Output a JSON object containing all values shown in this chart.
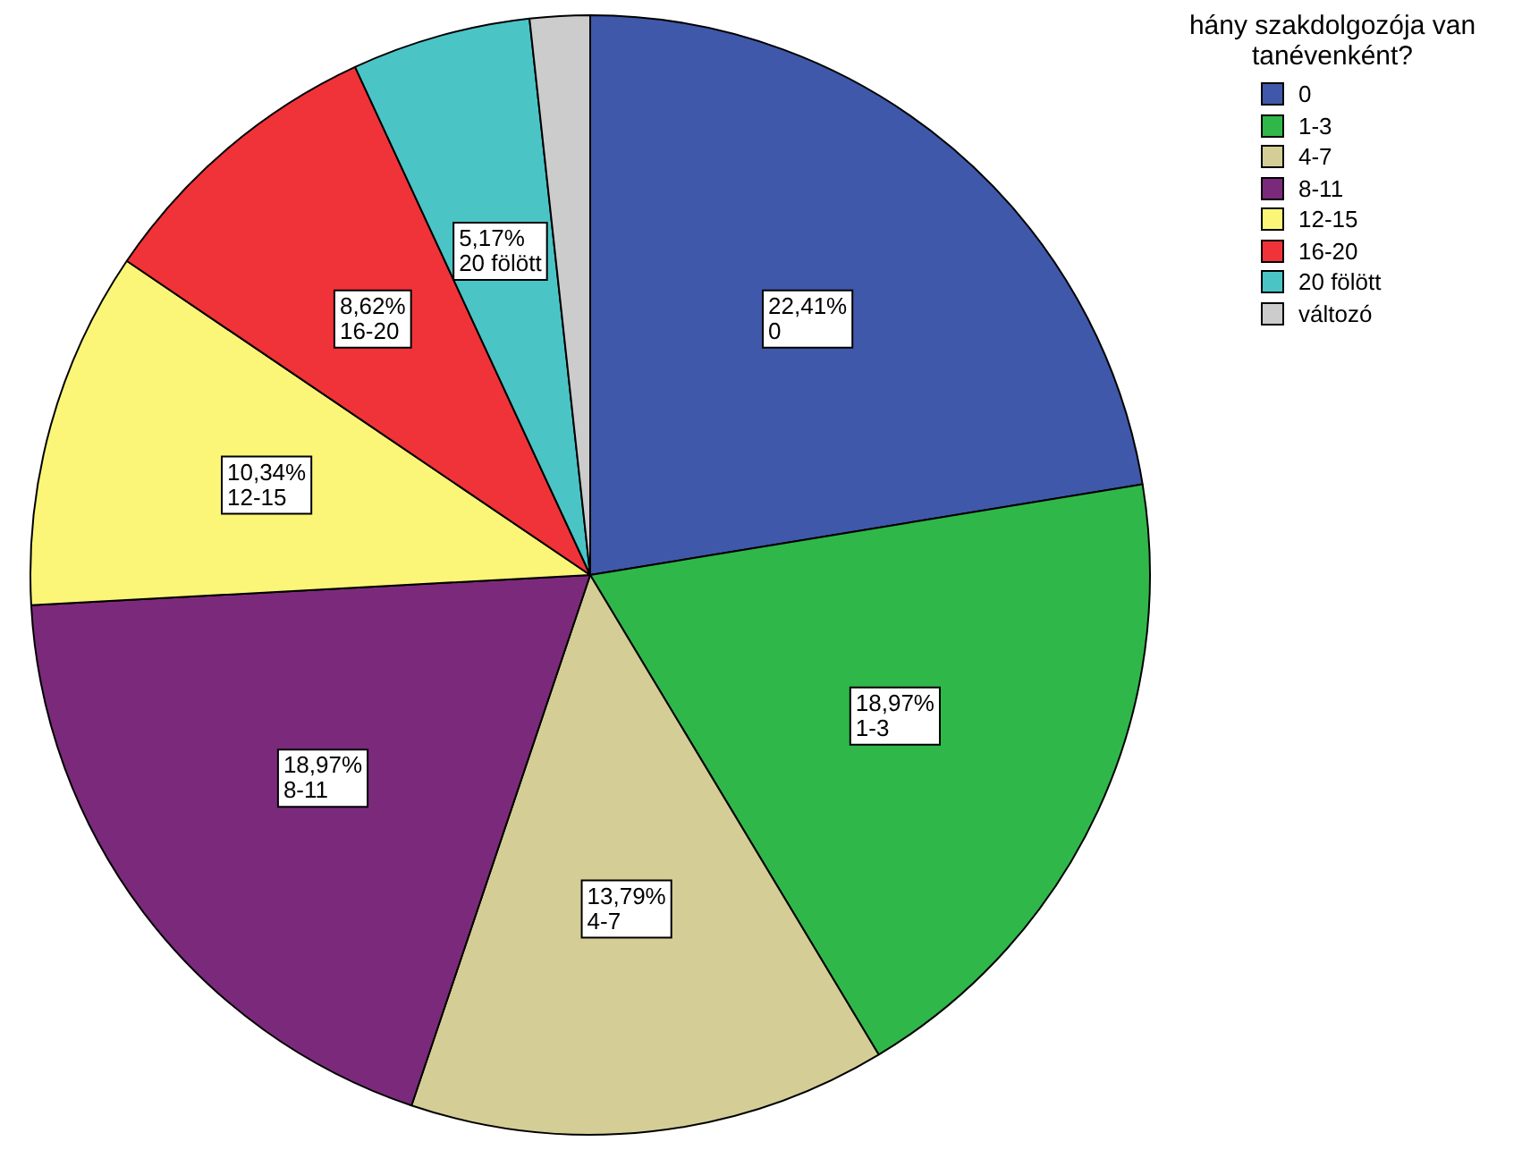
{
  "chart_data": {
    "type": "pie",
    "legend_title": "hány szakdolgozója van tanévenként?",
    "legend": "top right",
    "categories": [
      "0",
      "1-3",
      "4-7",
      "8-11",
      "12-15",
      "16-20",
      "20 fölött",
      "változó"
    ],
    "values": [
      22.41,
      18.97,
      13.79,
      18.97,
      10.34,
      8.62,
      5.17,
      1.73
    ],
    "value_labels": [
      "22,41%",
      "18,97%",
      "13,79%",
      "18,97%",
      "10,34%",
      "8,62%",
      "5,17%",
      null
    ],
    "colors": [
      "#3f58aa",
      "#30b74a",
      "#d4ce96",
      "#7b2a7b",
      "#fbf678",
      "#f03338",
      "#4bc4c6",
      "#cccccc"
    ]
  }
}
